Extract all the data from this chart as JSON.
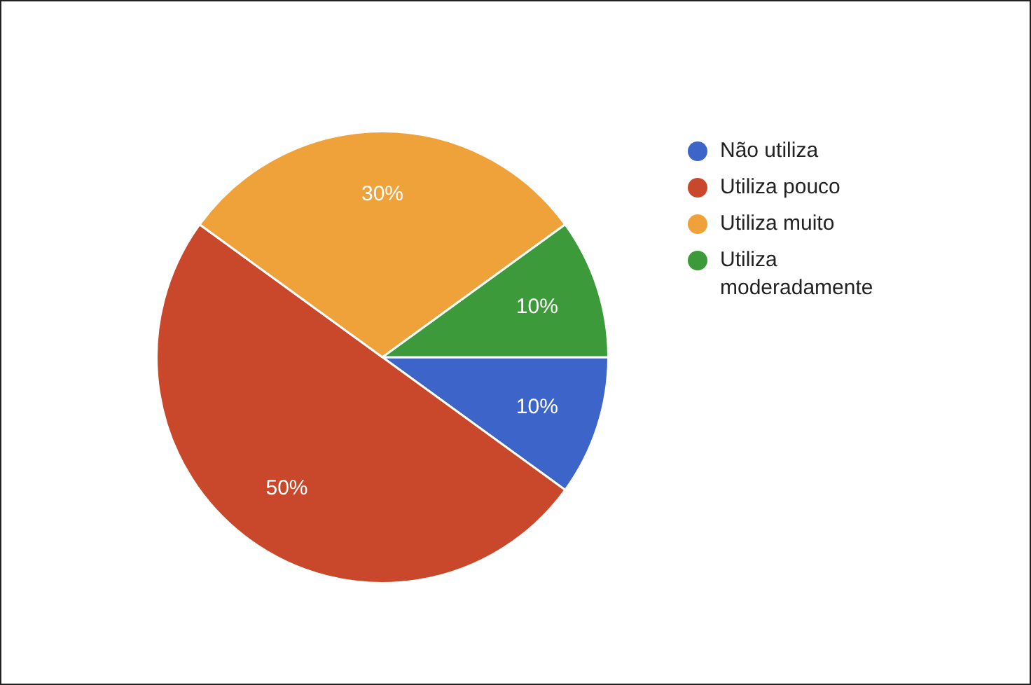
{
  "chart_data": {
    "type": "pie",
    "categories": [
      "Não utiliza",
      "Utiliza pouco",
      "Utiliza muito",
      "Utiliza moderadamente"
    ],
    "values": [
      10,
      50,
      30,
      10
    ],
    "colors": [
      "#3d64c9",
      "#c9472a",
      "#f0a23a",
      "#3d9a3a"
    ],
    "value_labels": [
      "10%",
      "50%",
      "30%",
      "10%"
    ],
    "legend": "right"
  }
}
